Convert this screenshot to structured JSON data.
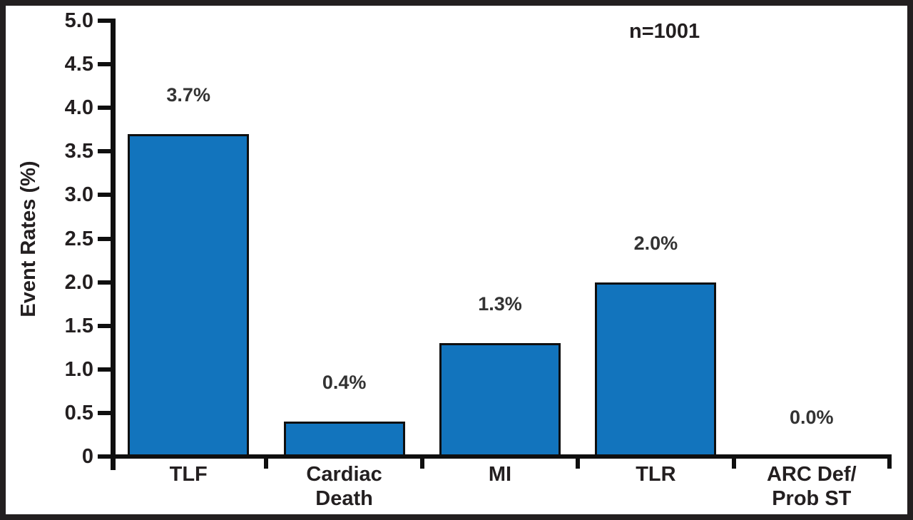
{
  "chart_data": {
    "type": "bar",
    "title": "",
    "ylabel": "Event Rates (%)",
    "xlabel": "",
    "annotation": "n=1001",
    "categories": [
      "TLF",
      "Cardiac\nDeath",
      "MI",
      "TLR",
      "ARC Def/\nProb ST"
    ],
    "values": [
      3.7,
      0.4,
      1.3,
      2.0,
      0.0
    ],
    "value_labels": [
      "3.7%",
      "0.4%",
      "1.3%",
      "2.0%",
      "0.0%"
    ],
    "ylim": [
      0,
      5
    ],
    "yticks": [
      {
        "label": "0",
        "value": 0
      },
      {
        "label": "0.5",
        "value": 0.5
      },
      {
        "label": "1.0",
        "value": 1.0
      },
      {
        "label": "1.5",
        "value": 1.5
      },
      {
        "label": "2.0",
        "value": 2.0
      },
      {
        "label": "2.5",
        "value": 2.5
      },
      {
        "label": "3.0",
        "value": 3.0
      },
      {
        "label": "3.5",
        "value": 3.5
      },
      {
        "label": "4.0",
        "value": 4.0
      },
      {
        "label": "4.5",
        "value": 4.5
      },
      {
        "label": "5.0",
        "value": 5.0
      }
    ],
    "grid": false,
    "legend_position": "none",
    "colors": {
      "bar_fill": "#1274BD",
      "bar_border": "#0F0F0F",
      "axis": "#0F0F0F",
      "text": "#231F20",
      "value_label_text": "#333333",
      "frame_border": "#231F20",
      "background": "#FFFFFF"
    }
  }
}
